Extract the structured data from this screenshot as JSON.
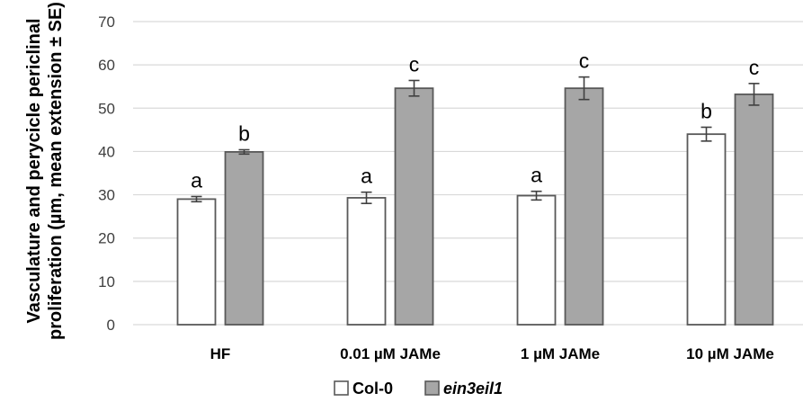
{
  "chart_data": {
    "type": "bar",
    "categories": [
      "HF",
      "0.01 µM JAMe",
      "1 µM JAMe",
      "10 µM JAMe"
    ],
    "series": [
      {
        "name": "Col-0",
        "values": [
          29.0,
          29.3,
          29.8,
          44.0
        ],
        "errors": [
          0.6,
          1.3,
          1.0,
          1.6
        ],
        "labels": [
          "a",
          "a",
          "a",
          "b"
        ],
        "color": "#ffffff",
        "stroke": "#595959"
      },
      {
        "name": "ein3eil1",
        "values": [
          39.9,
          54.6,
          54.6,
          53.2
        ],
        "errors": [
          0.5,
          1.8,
          2.6,
          2.5
        ],
        "labels": [
          "b",
          "c",
          "c",
          "c"
        ],
        "color": "#a6a6a6",
        "stroke": "#595959"
      }
    ],
    "ylabel_line1": "Vasculature and perycicle periclinal",
    "ylabel_line2": "proliferation (µm, mean extension ± SE)",
    "ylim": [
      0,
      70
    ],
    "yticks": [
      0,
      10,
      20,
      30,
      40,
      50,
      60,
      70
    ],
    "grid": true,
    "legend_position": "bottom-center",
    "gridline_color": "#d9d9d9"
  }
}
